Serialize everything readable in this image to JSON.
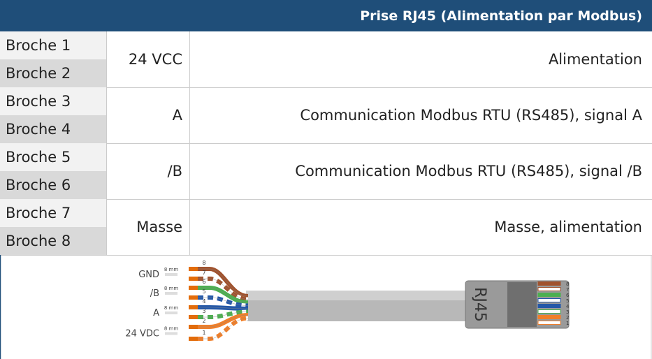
{
  "header": {
    "title": "Prise RJ45 (Alimentation par Modbus)"
  },
  "table": {
    "rows": [
      {
        "pins": [
          "Broche 1",
          "Broche 2"
        ],
        "signal": "24 VCC",
        "description": "Alimentation"
      },
      {
        "pins": [
          "Broche 3",
          "Broche 4"
        ],
        "signal": "A",
        "description": "Communication Modbus RTU (RS485), signal A"
      },
      {
        "pins": [
          "Broche 5",
          "Broche 6"
        ],
        "signal": "/B",
        "description": "Communication Modbus RTU (RS485), signal /B"
      },
      {
        "pins": [
          "Broche 7",
          "Broche 8"
        ],
        "signal": "Masse",
        "description": "Masse, alimentation"
      }
    ]
  },
  "diagram": {
    "labels": [
      "GND",
      "/B",
      "A",
      "24 VDC"
    ],
    "strip_lengths": [
      "8 mm",
      "8 mm",
      "8 mm",
      "8 mm"
    ],
    "wire_numbers": [
      "8",
      "7",
      "6",
      "5",
      "4",
      "3",
      "2",
      "1"
    ],
    "connector": "RJ45",
    "pin_numbers": [
      "8",
      "7",
      "6",
      "5",
      "4",
      "3",
      "2",
      "1"
    ]
  }
}
